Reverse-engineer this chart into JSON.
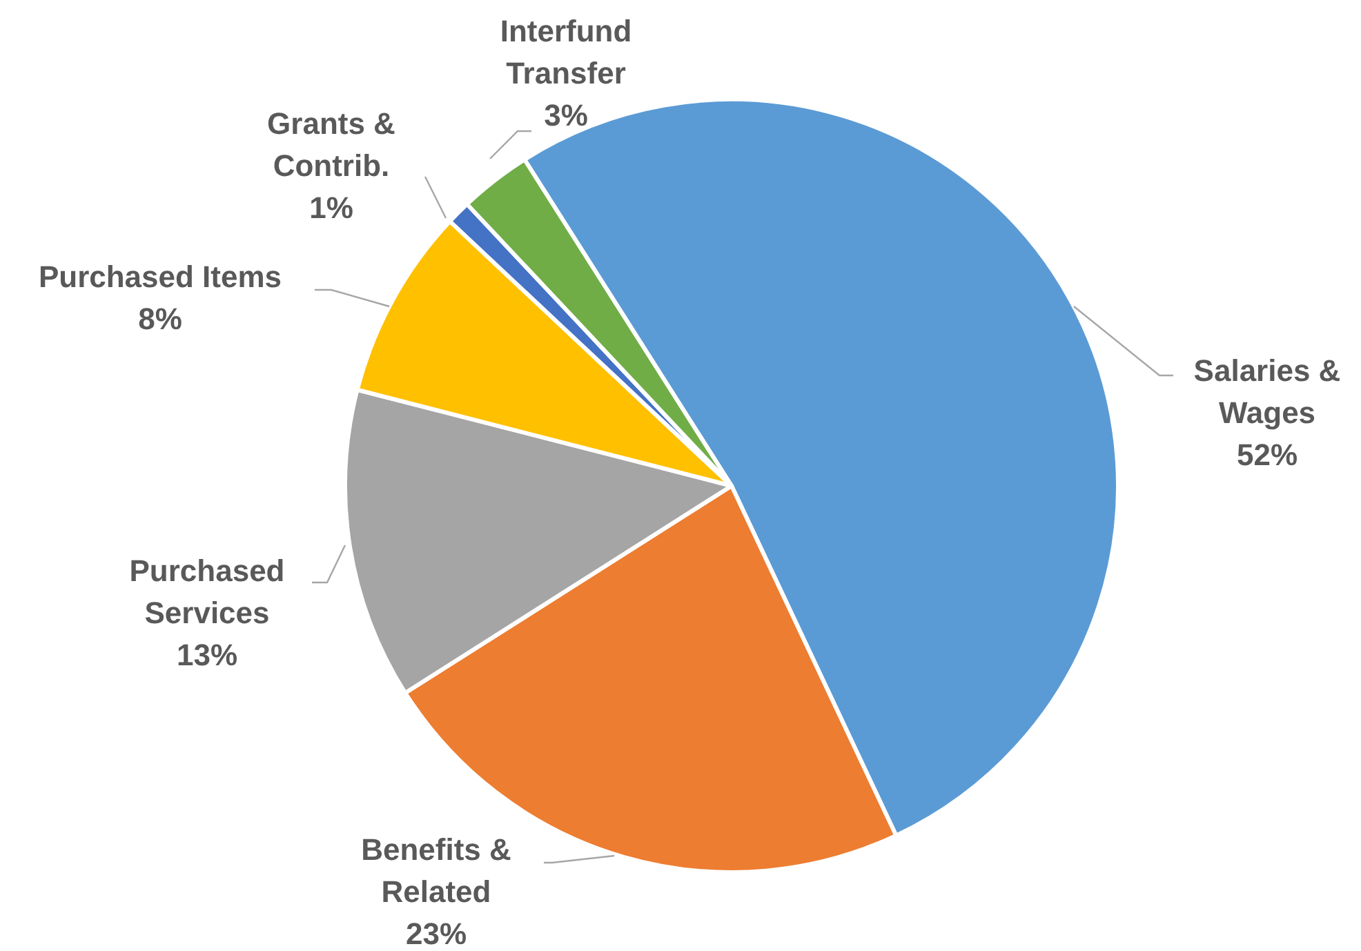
{
  "chart_data": {
    "type": "pie",
    "categories": [
      "Salaries & Wages",
      "Benefits & Related",
      "Purchased Services",
      "Purchased Items",
      "Grants & Contrib.",
      "Interfund Transfer"
    ],
    "values": [
      52,
      23,
      13,
      8,
      1,
      3
    ],
    "value_labels": [
      "52%",
      "23%",
      "13%",
      "8%",
      "1%",
      "3%"
    ],
    "colors": [
      "#5b9bd5",
      "#ed7d31",
      "#a5a5a5",
      "#ffc000",
      "#4472c4",
      "#70ad47"
    ]
  }
}
